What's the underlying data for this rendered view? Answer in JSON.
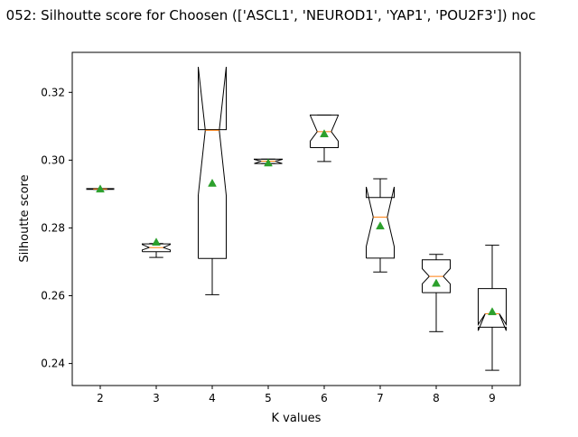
{
  "chart_data": {
    "type": "box",
    "title": "052: Silhoutte score for Choosen (['ASCL1', 'NEUROD1', 'YAP1', 'POU2F3']) noc",
    "xlabel": "K values",
    "ylabel": "Silhoutte score",
    "categories": [
      "2",
      "3",
      "4",
      "5",
      "6",
      "7",
      "8",
      "9"
    ],
    "ylim": [
      0.2335,
      0.3318
    ],
    "yticks": [
      "0.24",
      "0.26",
      "0.28",
      "0.30",
      "0.32"
    ],
    "notched": true,
    "show_means": true,
    "boxes": [
      {
        "k": 2,
        "whisker_low": 0.2914,
        "q1": 0.2914,
        "median": 0.2915,
        "q3": 0.2916,
        "whisker_high": 0.2916,
        "mean": 0.2915,
        "notch_low": 0.2914,
        "notch_high": 0.2916
      },
      {
        "k": 3,
        "whisker_low": 0.2713,
        "q1": 0.273,
        "median": 0.2742,
        "q3": 0.2753,
        "whisker_high": 0.2754,
        "mean": 0.2758,
        "notch_low": 0.2735,
        "notch_high": 0.2751
      },
      {
        "k": 4,
        "whisker_low": 0.2603,
        "q1": 0.271,
        "median": 0.3088,
        "q3": 0.309,
        "whisker_high": 0.309,
        "mean": 0.2932,
        "notch_low": 0.2896,
        "notch_high": 0.3275
      },
      {
        "k": 5,
        "whisker_low": 0.299,
        "q1": 0.299,
        "median": 0.2997,
        "q3": 0.3003,
        "whisker_high": 0.3003,
        "mean": 0.2992,
        "notch_low": 0.299,
        "notch_high": 0.3002
      },
      {
        "k": 6,
        "whisker_low": 0.2996,
        "q1": 0.3037,
        "median": 0.3084,
        "q3": 0.3133,
        "whisker_high": 0.3133,
        "mean": 0.3078,
        "notch_low": 0.3056,
        "notch_high": 0.3132
      },
      {
        "k": 7,
        "whisker_low": 0.267,
        "q1": 0.2711,
        "median": 0.2832,
        "q3": 0.289,
        "whisker_high": 0.2945,
        "mean": 0.2806,
        "notch_low": 0.2745,
        "notch_high": 0.2921
      },
      {
        "k": 8,
        "whisker_low": 0.2494,
        "q1": 0.2609,
        "median": 0.2657,
        "q3": 0.2706,
        "whisker_high": 0.2722,
        "mean": 0.2637,
        "notch_low": 0.2635,
        "notch_high": 0.268
      },
      {
        "k": 9,
        "whisker_low": 0.238,
        "q1": 0.2507,
        "median": 0.2547,
        "q3": 0.2621,
        "whisker_high": 0.2749,
        "mean": 0.2553,
        "notch_low": 0.2497,
        "notch_high": 0.2515
      }
    ],
    "colors": {
      "box": "#000000",
      "median": "#ff7f0e",
      "mean_marker": "#2ca02c",
      "background": "#ffffff"
    },
    "grid": false,
    "legend": "none"
  }
}
